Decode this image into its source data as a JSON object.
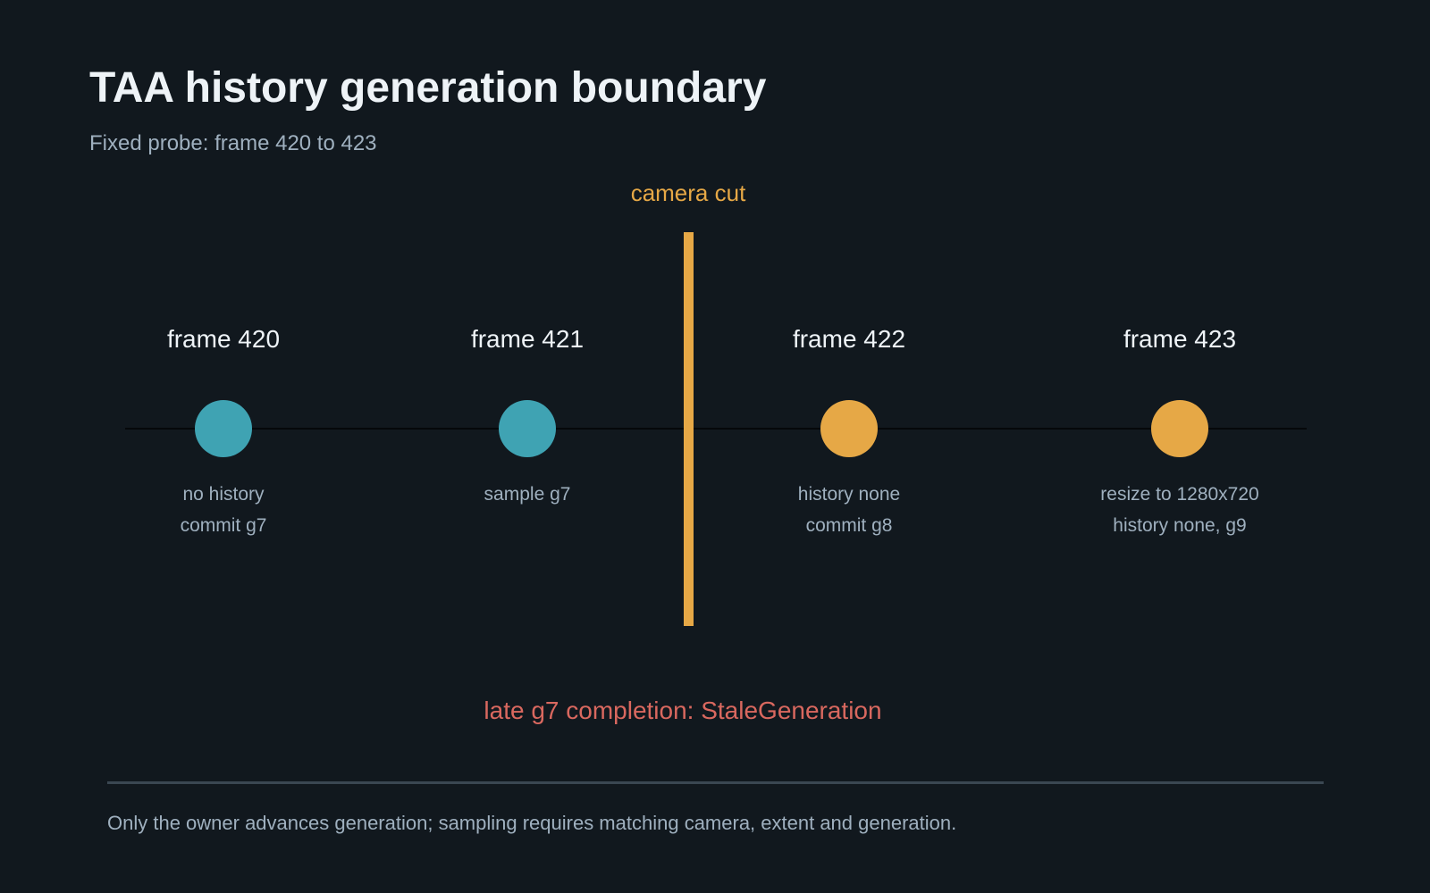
{
  "title": "TAA history generation boundary",
  "subtitle": "Fixed probe: frame 420 to 423",
  "cut": {
    "label": "camera cut",
    "after_frame_index": 1
  },
  "frames": [
    {
      "label": "frame 420",
      "lines": [
        "no history",
        "commit g7"
      ],
      "phase": "before-cut"
    },
    {
      "label": "frame 421",
      "lines": [
        "sample g7"
      ],
      "phase": "before-cut"
    },
    {
      "label": "frame 422",
      "lines": [
        "history none",
        "commit g8"
      ],
      "phase": "after-cut"
    },
    {
      "label": "frame 423",
      "lines": [
        "resize to 1280x720",
        "history none, g9"
      ],
      "phase": "after-cut"
    }
  ],
  "stale_message": "late g7 completion: StaleGeneration",
  "footer_note": "Only the owner advances generation; sampling requires matching camera, extent and generation.",
  "colors": {
    "background": "#11181e",
    "before_cut": "#3fa3b3",
    "after_cut": "#e6a846",
    "cut_bar": "#e6a846",
    "error": "#d9685f",
    "timeline": "#05080a",
    "text_primary": "#eef3f7",
    "text_secondary": "#9fb0bf"
  }
}
